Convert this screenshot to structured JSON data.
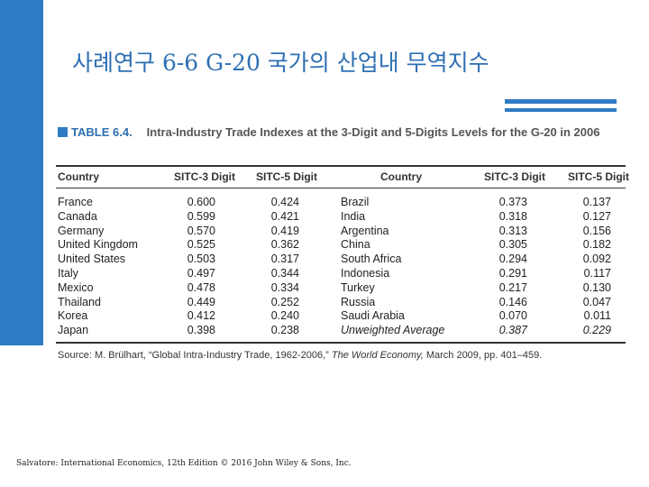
{
  "slide": {
    "title": "사례연구 6-6  G-20 국가의 산업내 무역지수",
    "footer": "Salvatore: International Economics, 12th Edition © 2016 John Wiley & Sons, Inc.",
    "accent_color": "#2f7cc4"
  },
  "table": {
    "number": "TABLE 6.4.",
    "caption": "Intra-Industry Trade Indexes at the 3-Digit and 5-Digits Levels for the G-20 in 2006",
    "headers": [
      "Country",
      "SITC-3 Digit",
      "SITC-5 Digit",
      "Country",
      "SITC-3 Digit",
      "SITC-5 Digit"
    ],
    "rows": [
      [
        "France",
        "0.600",
        "0.424",
        "Brazil",
        "0.373",
        "0.137"
      ],
      [
        "Canada",
        "0.599",
        "0.421",
        "India",
        "0.318",
        "0.127"
      ],
      [
        "Germany",
        "0.570",
        "0.419",
        "Argentina",
        "0.313",
        "0.156"
      ],
      [
        "United Kingdom",
        "0.525",
        "0.362",
        "China",
        "0.305",
        "0.182"
      ],
      [
        "United States",
        "0.503",
        "0.317",
        "South Africa",
        "0.294",
        "0.092"
      ],
      [
        "Italy",
        "0.497",
        "0.344",
        "Indonesia",
        "0.291",
        "0.117"
      ],
      [
        "Mexico",
        "0.478",
        "0.334",
        "Turkey",
        "0.217",
        "0.130"
      ],
      [
        "Thailand",
        "0.449",
        "0.252",
        "Russia",
        "0.146",
        "0.047"
      ],
      [
        "Korea",
        "0.412",
        "0.240",
        "Saudi Arabia",
        "0.070",
        "0.011"
      ],
      [
        "Japan",
        "0.398",
        "0.238",
        "Unweighted Average",
        "0.387",
        "0.229"
      ]
    ],
    "source_prefix": "Source: M. Brülhart, “Global Intra-Industry Trade, 1962-2006,”",
    "source_journal": "The World Economy,",
    "source_suffix": "March 2009, pp. 401–459."
  }
}
